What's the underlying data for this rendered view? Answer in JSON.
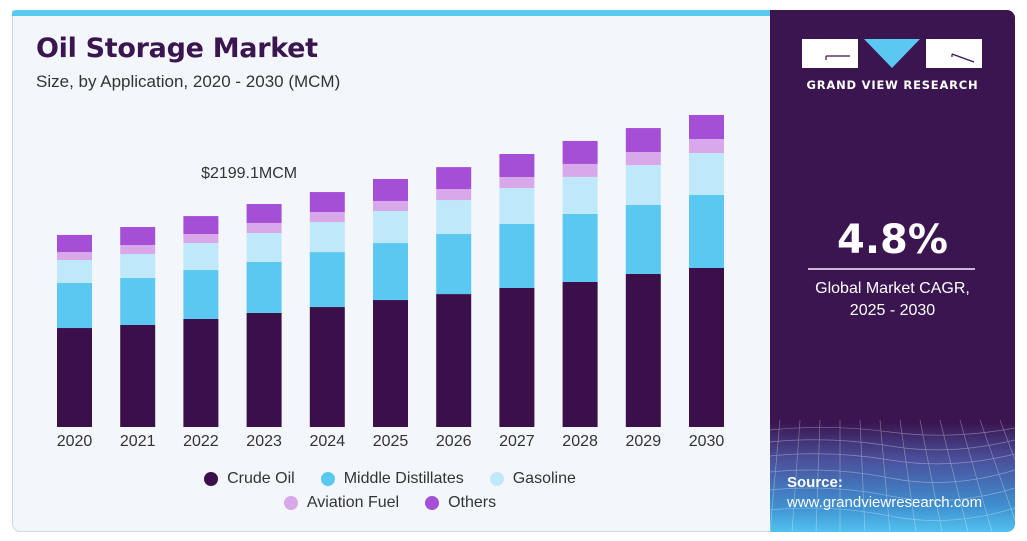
{
  "header": {
    "title": "Oil Storage Market",
    "subtitle": "Size, by Application, 2020 - 2030 (MCM)"
  },
  "brand": {
    "name": "GRAND VIEW RESEARCH",
    "logo_icon": "gvr-logo-icon"
  },
  "highlight": {
    "cagr_value": "4.8%",
    "cagr_label_line1": "Global Market CAGR,",
    "cagr_label_line2": "2025 - 2030"
  },
  "source": {
    "label": "Source:",
    "url": "www.grandviewresearch.com"
  },
  "colors": {
    "brand_purple": "#3a1550",
    "accent_blue": "#5bc8f2"
  },
  "chart_data": {
    "type": "bar",
    "stacked": true,
    "title": "Oil Storage Market",
    "subtitle": "Size, by Application, 2020 - 2030 (MCM)",
    "xlabel": "",
    "ylabel": "",
    "categories": [
      "2020",
      "2021",
      "2022",
      "2023",
      "2024",
      "2025",
      "2026",
      "2027",
      "2028",
      "2029",
      "2030"
    ],
    "series": [
      {
        "name": "Crude Oil",
        "color": "#3b0f4a",
        "values": [
          976,
          1006,
          1065,
          1124.4,
          1183,
          1252,
          1311,
          1371,
          1430,
          1509,
          1568
        ]
      },
      {
        "name": "Middle Distillates",
        "color": "#5bc8f2",
        "values": [
          444,
          463,
          483,
          502.9,
          542,
          562,
          592,
          631,
          671,
          680,
          720
        ]
      },
      {
        "name": "Gasoline",
        "color": "#bfe9fa",
        "values": [
          227,
          237,
          266,
          286.0,
          296,
          316,
          335,
          355,
          365,
          394,
          414
        ]
      },
      {
        "name": "Aviation Fuel",
        "color": "#d9a8ea",
        "values": [
          79,
          89,
          89,
          98.6,
          99,
          99,
          108,
          108,
          128,
          128,
          138
        ]
      },
      {
        "name": "Others",
        "color": "#a44fd6",
        "values": [
          168,
          177,
          177,
          187.2,
          197,
          217,
          217,
          227,
          227,
          237,
          237
        ]
      }
    ],
    "annotation": {
      "text": "$2199.1MCM",
      "category": "2023",
      "value": 2199.1
    },
    "ylim": [
      0,
      3300
    ],
    "axis_visible": false,
    "grid": false,
    "legend": {
      "placement": "bottom",
      "rows": [
        [
          "Crude Oil",
          "Middle Distillates",
          "Gasoline"
        ],
        [
          "Aviation Fuel",
          "Others"
        ]
      ]
    }
  }
}
